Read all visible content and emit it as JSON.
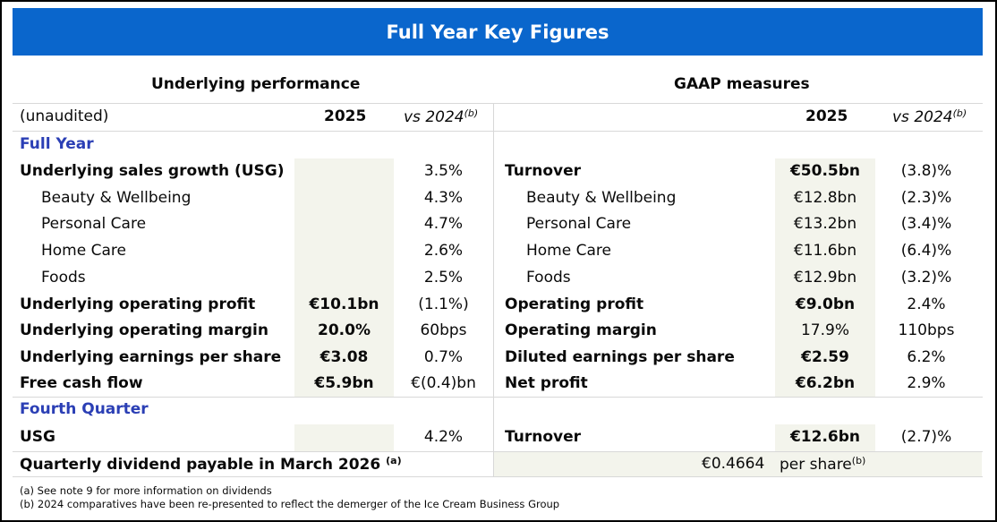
{
  "title": "Full Year Key Figures",
  "left_header": "Underlying performance",
  "right_header": "GAAP measures",
  "col_row": {
    "unaudited": "(unaudited)",
    "y2025": "2025",
    "vs2024": "vs 2024",
    "vs2024_sup": "(b)"
  },
  "section_fy": "Full Year",
  "section_q4": "Fourth Quarter",
  "left_rows": [
    {
      "label": "Underlying sales growth (USG)",
      "val2025": "",
      "vs": "3.5%"
    },
    {
      "label": "Beauty & Wellbeing",
      "val2025": "",
      "vs": "4.3%"
    },
    {
      "label": "Personal Care",
      "val2025": "",
      "vs": "4.7%"
    },
    {
      "label": "Home Care",
      "val2025": "",
      "vs": "2.6%"
    },
    {
      "label": "Foods",
      "val2025": "",
      "vs": "2.5%"
    },
    {
      "label": "Underlying operating profit",
      "val2025": "€10.1bn",
      "vs": "(1.1%)"
    },
    {
      "label": "Underlying operating margin",
      "val2025": "20.0%",
      "vs": "60bps"
    },
    {
      "label": "Underlying earnings per share",
      "val2025": "€3.08",
      "vs": "0.7%"
    },
    {
      "label": "Free cash flow",
      "val2025": "€5.9bn",
      "vs": "€(0.4)bn"
    }
  ],
  "right_rows": [
    {
      "label": "Turnover",
      "val2025": "€50.5bn",
      "vs": "(3.8)%"
    },
    {
      "label": "Beauty & Wellbeing",
      "val2025": "€12.8bn",
      "vs": "(2.3)%"
    },
    {
      "label": "Personal Care",
      "val2025": "€13.2bn",
      "vs": "(3.4)%"
    },
    {
      "label": "Home Care",
      "val2025": "€11.6bn",
      "vs": "(6.4)%"
    },
    {
      "label": "Foods",
      "val2025": "€12.9bn",
      "vs": "(3.2)%"
    },
    {
      "label": "Operating profit",
      "val2025": "€9.0bn",
      "vs": "2.4%"
    },
    {
      "label": "Operating margin",
      "val2025": "17.9%",
      "vs": "110bps"
    },
    {
      "label": "Diluted earnings per share",
      "val2025": "€2.59",
      "vs": "6.2%"
    },
    {
      "label": "Net profit",
      "val2025": "€6.2bn",
      "vs": "2.9%"
    }
  ],
  "q4_left": {
    "label": "USG",
    "val2025": "",
    "vs": "4.2%"
  },
  "q4_right": {
    "label": "Turnover",
    "val2025": "€12.6bn",
    "vs": "(2.7)%"
  },
  "dividend": {
    "label": "Quarterly dividend payable in March 2026",
    "label_sup": "(a)",
    "amount": "€0.4664",
    "per_share": "per share",
    "per_share_sup": "(b)"
  },
  "footnotes": {
    "a": "(a) See note 9 for more information on dividends",
    "b": "(b) 2024 comparatives have been re-presented to reflect the demerger of the Ice Cream Business Group"
  },
  "colors": {
    "banner": "#0a66cc",
    "section_text": "#2b3fb5",
    "shade": "#f3f4ec"
  }
}
